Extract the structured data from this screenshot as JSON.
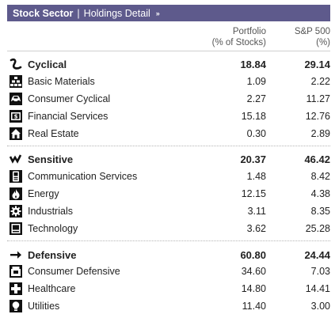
{
  "header": {
    "title": "Stock Sector",
    "separator": "|",
    "subtitle": "Holdings Detail",
    "chevrons": "››",
    "bg_color": "#5e5a8c"
  },
  "columns": {
    "portfolio_line1": "Portfolio",
    "portfolio_line2": "(% of Stocks)",
    "sp_line1": "S&P 500",
    "sp_line2": "(%)"
  },
  "groups": [
    {
      "name": "Cyclical",
      "icon": "cyclical-icon",
      "portfolio": "18.84",
      "sp500": "29.14",
      "rows": [
        {
          "label": "Basic Materials",
          "icon": "basic-materials-icon",
          "portfolio": "1.09",
          "sp500": "2.22"
        },
        {
          "label": "Consumer Cyclical",
          "icon": "consumer-cyclical-icon",
          "portfolio": "2.27",
          "sp500": "11.27"
        },
        {
          "label": "Financial Services",
          "icon": "financial-services-icon",
          "portfolio": "15.18",
          "sp500": "12.76"
        },
        {
          "label": "Real Estate",
          "icon": "real-estate-icon",
          "portfolio": "0.30",
          "sp500": "2.89"
        }
      ]
    },
    {
      "name": "Sensitive",
      "icon": "sensitive-icon",
      "portfolio": "20.37",
      "sp500": "46.42",
      "rows": [
        {
          "label": "Communication Services",
          "icon": "communication-services-icon",
          "portfolio": "1.48",
          "sp500": "8.42"
        },
        {
          "label": "Energy",
          "icon": "energy-icon",
          "portfolio": "12.15",
          "sp500": "4.38"
        },
        {
          "label": "Industrials",
          "icon": "industrials-icon",
          "portfolio": "3.11",
          "sp500": "8.35"
        },
        {
          "label": "Technology",
          "icon": "technology-icon",
          "portfolio": "3.62",
          "sp500": "25.28"
        }
      ]
    },
    {
      "name": "Defensive",
      "icon": "defensive-icon",
      "portfolio": "60.80",
      "sp500": "24.44",
      "rows": [
        {
          "label": "Consumer Defensive",
          "icon": "consumer-defensive-icon",
          "portfolio": "34.60",
          "sp500": "7.03"
        },
        {
          "label": "Healthcare",
          "icon": "healthcare-icon",
          "portfolio": "14.80",
          "sp500": "14.41"
        },
        {
          "label": "Utilities",
          "icon": "utilities-icon",
          "portfolio": "11.40",
          "sp500": "3.00"
        }
      ]
    }
  ]
}
